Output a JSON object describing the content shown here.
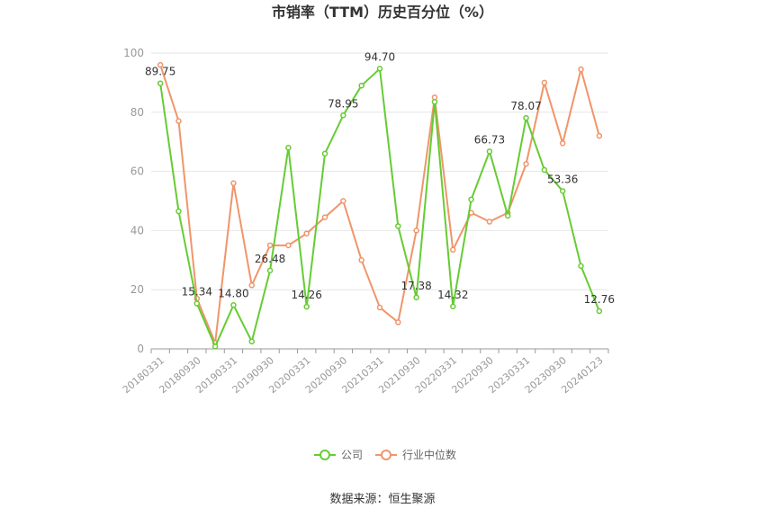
{
  "chart_data": {
    "type": "line",
    "title": "市销率（TTM）历史百分位（%）",
    "ylim": [
      0,
      100
    ],
    "yticks": [
      0,
      20,
      40,
      60,
      80,
      100
    ],
    "grid": true,
    "legend_position": "bottom",
    "x_tick_labels": [
      "20180331",
      "20180930",
      "20190331",
      "20190930",
      "20200331",
      "20200930",
      "20210331",
      "20210930",
      "20220331",
      "20220930",
      "20230331",
      "20230930",
      "20240123"
    ],
    "x": [
      "20180331",
      "20180630",
      "20180930",
      "20181231",
      "20190331",
      "20190630",
      "20190930",
      "20191231",
      "20200331",
      "20200630",
      "20200930",
      "20201231",
      "20210331",
      "20210630",
      "20210930",
      "20211231",
      "20220331",
      "20220630",
      "20220930",
      "20221231",
      "20230331",
      "20230630",
      "20230930",
      "20231231",
      "20240123"
    ],
    "series": [
      {
        "name": "公司",
        "color": "#66cc33",
        "values": [
          89.75,
          46.5,
          15.34,
          0.8,
          14.8,
          2.5,
          26.48,
          68.0,
          14.26,
          66.0,
          78.95,
          89.0,
          94.7,
          41.5,
          17.38,
          83.5,
          14.32,
          50.5,
          66.73,
          45.0,
          78.07,
          60.5,
          53.36,
          28.0,
          12.76
        ],
        "labels": {
          "0": "89.75",
          "2": "15.34",
          "4": "14.80",
          "6": "26.48",
          "8": "14.26",
          "10": "78.95",
          "12": "94.70",
          "14": "17.38",
          "16": "14.32",
          "18": "66.73",
          "20": "78.07",
          "22": "53.36",
          "24": "12.76"
        }
      },
      {
        "name": "行业中位数",
        "color": "#f0956a",
        "values": [
          96.0,
          77.0,
          17.0,
          2.0,
          56.0,
          21.5,
          35.0,
          35.0,
          39.0,
          44.5,
          50.0,
          30.0,
          14.0,
          9.0,
          40.0,
          85.0,
          33.5,
          46.0,
          43.0,
          46.0,
          62.5,
          90.0,
          69.5,
          94.5,
          72.0
        ]
      }
    ],
    "source": "数据来源：恒生聚源"
  }
}
